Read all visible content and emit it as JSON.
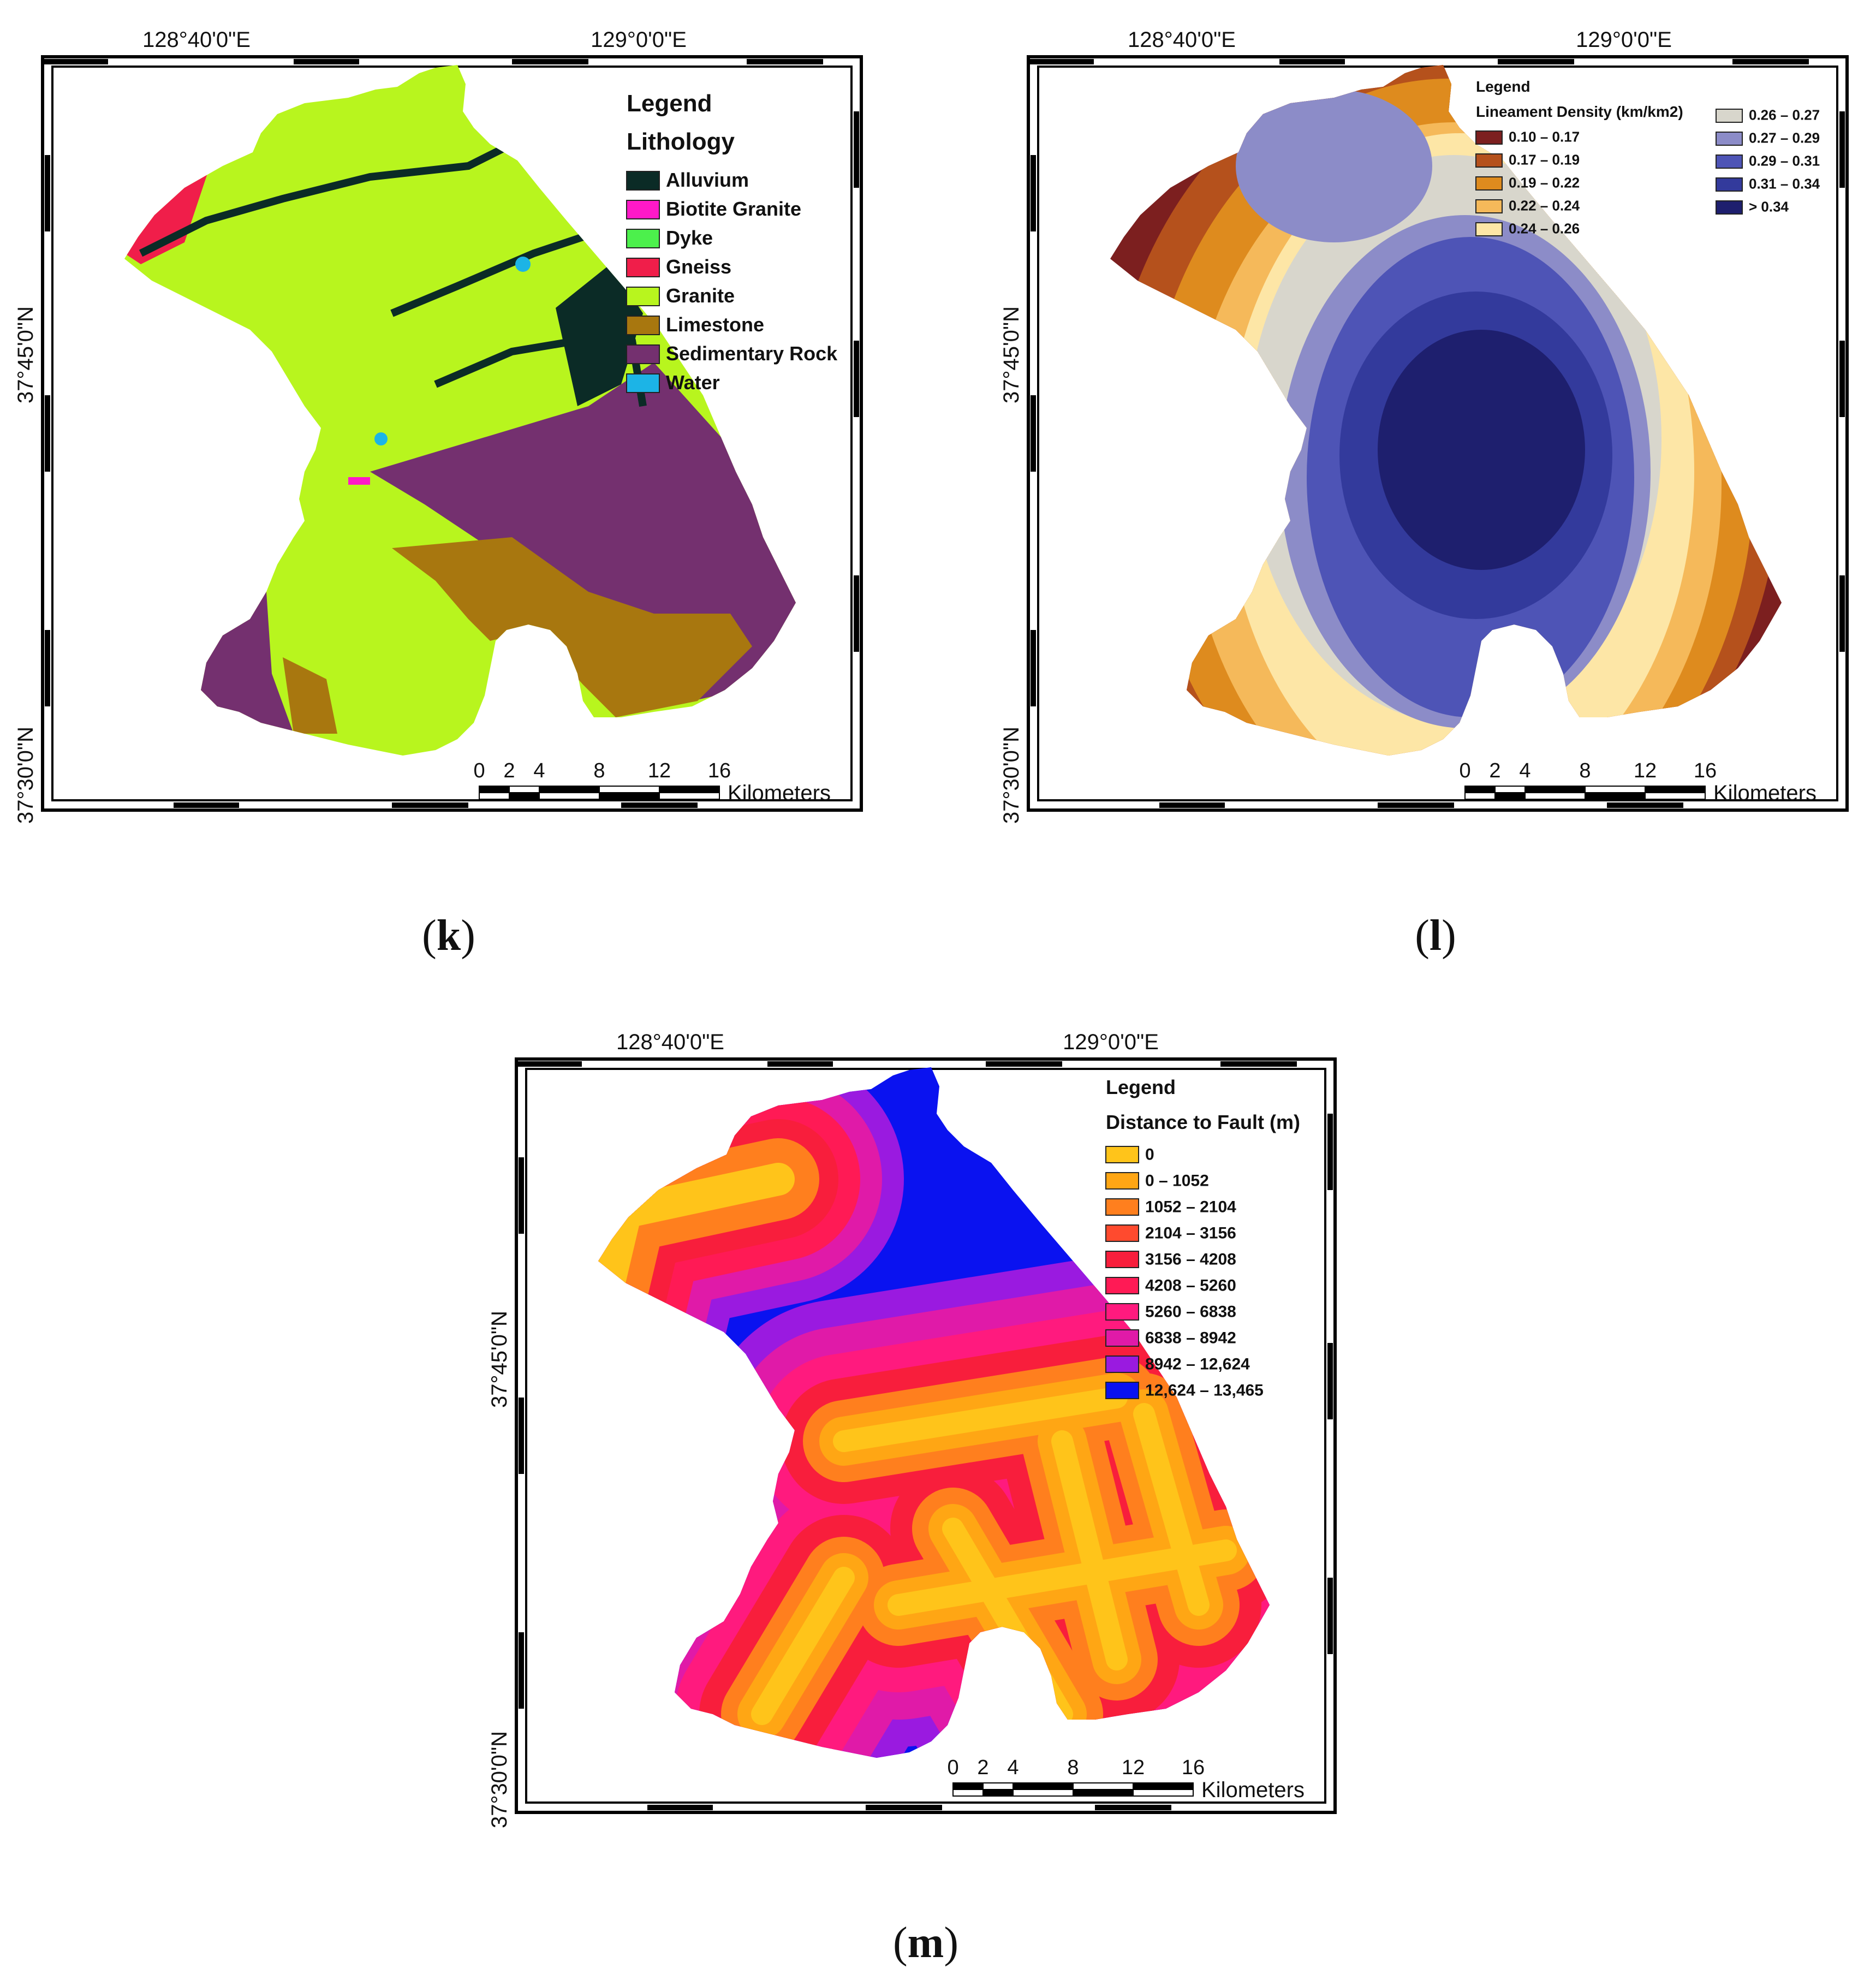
{
  "maps": [
    {
      "id": "k",
      "caption_open": "(",
      "caption_letter": "k",
      "caption_close": ")",
      "lon_labels": [
        "128°40'0\"E",
        "129°0'0\"E"
      ],
      "lat_labels": [
        "37°45'0\"N",
        "37°30'0\"N"
      ],
      "legend_title": "Legend",
      "legend_subtitle": "Lithology",
      "legend_items": [
        {
          "label": "Alluvium",
          "color": "#0b2b26"
        },
        {
          "label": "Biotite Granite",
          "color": "#ff19c8"
        },
        {
          "label": "Dyke",
          "color": "#4cf04c"
        },
        {
          "label": "Gneiss",
          "color": "#f01e4a"
        },
        {
          "label": "Granite",
          "color": "#b8f51e"
        },
        {
          "label": "Limestone",
          "color": "#a8770f"
        },
        {
          "label": "Sedimentary Rock",
          "color": "#74306f"
        },
        {
          "label": "Water",
          "color": "#1cb4e6"
        }
      ],
      "scale_ticks": [
        "0",
        "2",
        "4",
        "8",
        "12",
        "16"
      ],
      "scale_unit": "Kilometers"
    },
    {
      "id": "l",
      "caption_open": "(",
      "caption_letter": "l",
      "caption_close": ")",
      "lon_labels": [
        "128°40'0\"E",
        "129°0'0\"E"
      ],
      "lat_labels": [
        "37°45'0\"N",
        "37°30'0\"N"
      ],
      "legend_title": "Legend",
      "legend_subtitle": "Lineament Density (km/km2)",
      "legend_items": [
        {
          "label": "0.10 – 0.17",
          "color": "#7c1f1f"
        },
        {
          "label": "0.17 – 0.19",
          "color": "#b5511c"
        },
        {
          "label": "0.19 – 0.22",
          "color": "#de8b1e"
        },
        {
          "label": "0.22 – 0.24",
          "color": "#f5b95a"
        },
        {
          "label": "0.24 – 0.26",
          "color": "#fde6a6"
        },
        {
          "label": "0.26 – 0.27",
          "color": "#d8d6cc"
        },
        {
          "label": "0.27 – 0.29",
          "color": "#8c8cc8"
        },
        {
          "label": "0.29 – 0.31",
          "color": "#4e54b6"
        },
        {
          "label": "0.31 – 0.34",
          "color": "#333a9c"
        },
        {
          "label": "> 0.34",
          "color": "#1e1f6e"
        }
      ],
      "scale_ticks": [
        "0",
        "2",
        "4",
        "8",
        "12",
        "16"
      ],
      "scale_unit": "Kilometers"
    },
    {
      "id": "m",
      "caption_open": "(",
      "caption_letter": "m",
      "caption_close": ")",
      "lon_labels": [
        "128°40'0\"E",
        "129°0'0\"E"
      ],
      "lat_labels": [
        "37°45'0\"N",
        "37°30'0\"N"
      ],
      "legend_title": "Legend",
      "legend_subtitle": "Distance to Fault (m)",
      "legend_items": [
        {
          "label": "0",
          "color": "#ffc41a"
        },
        {
          "label": "0 – 1052",
          "color": "#ffa614"
        },
        {
          "label": "1052 – 2104",
          "color": "#ff7f1e"
        },
        {
          "label": "2104 – 3156",
          "color": "#ff4a2e"
        },
        {
          "label": "3156 – 4208",
          "color": "#f81e3c"
        },
        {
          "label": "4208 – 5260",
          "color": "#ff1a55"
        },
        {
          "label": "5260 – 6838",
          "color": "#ff1a7e"
        },
        {
          "label": "6838 – 8942",
          "color": "#e01aa8"
        },
        {
          "label": "8942 – 12,624",
          "color": "#9a1ae0"
        },
        {
          "label": "12,624 – 13,465",
          "color": "#0a12f0"
        }
      ],
      "scale_ticks": [
        "0",
        "2",
        "4",
        "8",
        "12",
        "16"
      ],
      "scale_unit": "Kilometers"
    }
  ]
}
